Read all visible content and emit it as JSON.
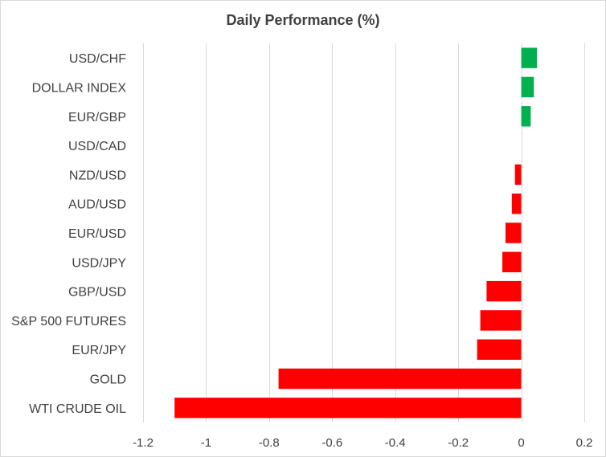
{
  "chart_data": {
    "type": "bar",
    "orientation": "horizontal",
    "title": "Daily Performance (%)",
    "xlabel": "",
    "ylabel": "",
    "xlim": [
      -1.2,
      0.2
    ],
    "x_ticks": [
      "-1.2",
      "-1",
      "-0.8",
      "-0.6",
      "-0.4",
      "-0.2",
      "0",
      "0.2"
    ],
    "x_tick_values": [
      -1.2,
      -1.0,
      -0.8,
      -0.6,
      -0.4,
      -0.2,
      0,
      0.2
    ],
    "grid": true,
    "legend": "none",
    "categories": [
      "USD/CHF",
      "DOLLAR INDEX",
      "EUR/GBP",
      "USD/CAD",
      "NZD/USD",
      "AUD/USD",
      "EUR/USD",
      "USD/JPY",
      "GBP/USD",
      "S&P 500 FUTURES",
      "EUR/JPY",
      "GOLD",
      "WTI CRUDE OIL"
    ],
    "values": [
      0.05,
      0.04,
      0.03,
      0.0,
      -0.02,
      -0.03,
      -0.05,
      -0.06,
      -0.11,
      -0.13,
      -0.14,
      -0.77,
      -1.1
    ],
    "colors": {
      "positive": "#00b050",
      "negative": "#ff0000",
      "grid": "#d9d9d9",
      "text": "#404040"
    }
  }
}
